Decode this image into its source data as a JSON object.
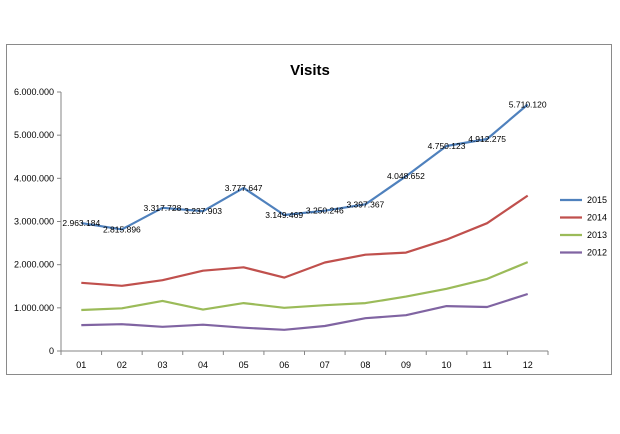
{
  "chart_data": {
    "type": "line",
    "title": "Visits",
    "xlabel": "",
    "ylabel": "",
    "categories": [
      "01",
      "02",
      "03",
      "04",
      "05",
      "06",
      "07",
      "08",
      "09",
      "10",
      "11",
      "12"
    ],
    "ylim": [
      0,
      6000000
    ],
    "yticks": [
      0,
      1000000,
      2000000,
      3000000,
      4000000,
      5000000,
      6000000
    ],
    "ytick_labels": [
      "0",
      "1.000.000",
      "2.000.000",
      "3.000.000",
      "4.000.000",
      "5.000.000",
      "6.000.000"
    ],
    "legend_position": "right",
    "grid": false,
    "series": [
      {
        "name": "2015",
        "color": "#4f81bd",
        "values": [
          2963184,
          2815896,
          3317728,
          3237903,
          3777647,
          3149469,
          3250246,
          3397367,
          4048652,
          4750123,
          4912275,
          5710120
        ],
        "labels": [
          "2.963.184",
          "2.815.896",
          "3.317.728",
          "3.237.903",
          "3.777.647",
          "3.149.469",
          "3.250.246",
          "3.397.367",
          "4.048.652",
          "4.750.123",
          "4.912.275",
          "5.710.120"
        ]
      },
      {
        "name": "2014",
        "color": "#c0504d",
        "values": [
          1580000,
          1510000,
          1640000,
          1860000,
          1940000,
          1700000,
          2050000,
          2230000,
          2280000,
          2580000,
          2960000,
          3600000
        ]
      },
      {
        "name": "2013",
        "color": "#9bbb59",
        "values": [
          950000,
          990000,
          1160000,
          960000,
          1110000,
          1000000,
          1060000,
          1110000,
          1260000,
          1440000,
          1670000,
          2060000
        ]
      },
      {
        "name": "2012",
        "color": "#8064a2",
        "values": [
          600000,
          620000,
          560000,
          610000,
          540000,
          490000,
          580000,
          760000,
          830000,
          1040000,
          1020000,
          1320000
        ]
      }
    ]
  }
}
